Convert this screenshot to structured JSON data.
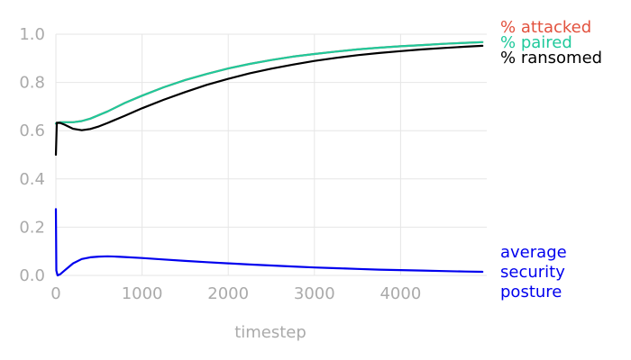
{
  "chart_data": {
    "type": "line",
    "xlabel": "timestep",
    "ylabel": "",
    "xlim": [
      0,
      5000
    ],
    "ylim": [
      0,
      1.0
    ],
    "x_ticks": [
      0,
      1000,
      2000,
      3000,
      4000
    ],
    "x_tick_labels": [
      "0",
      "1000",
      "2000",
      "3000",
      "4000"
    ],
    "y_ticks": [
      0.0,
      0.2,
      0.4,
      0.6,
      0.8,
      1.0
    ],
    "y_tick_labels": [
      "0.0",
      "0.2",
      "0.4",
      "0.6",
      "0.8",
      "1.0"
    ],
    "grid": true,
    "legend": "direct labels at right end of lines",
    "series": [
      {
        "name": "% attacked",
        "color": "#e2513d",
        "x": [
          0,
          50,
          100,
          200,
          300,
          400,
          500,
          600,
          800,
          1000,
          1250,
          1500,
          1750,
          2000,
          2250,
          2500,
          2750,
          3000,
          3250,
          3500,
          3750,
          4000,
          4250,
          4500,
          4750,
          4950
        ],
        "y": [
          0.63,
          0.635,
          0.635,
          0.635,
          0.64,
          0.65,
          0.665,
          0.68,
          0.715,
          0.745,
          0.78,
          0.81,
          0.835,
          0.858,
          0.877,
          0.893,
          0.907,
          0.918,
          0.928,
          0.937,
          0.944,
          0.95,
          0.955,
          0.96,
          0.964,
          0.967
        ]
      },
      {
        "name": "% paired",
        "color": "#1fc99b",
        "x": [
          0,
          50,
          100,
          200,
          300,
          400,
          500,
          600,
          800,
          1000,
          1250,
          1500,
          1750,
          2000,
          2250,
          2500,
          2750,
          3000,
          3250,
          3500,
          3750,
          4000,
          4250,
          4500,
          4750,
          4950
        ],
        "y": [
          0.63,
          0.635,
          0.635,
          0.635,
          0.64,
          0.65,
          0.665,
          0.68,
          0.715,
          0.745,
          0.78,
          0.81,
          0.835,
          0.858,
          0.877,
          0.893,
          0.907,
          0.918,
          0.928,
          0.937,
          0.944,
          0.95,
          0.955,
          0.96,
          0.964,
          0.967
        ]
      },
      {
        "name": "% ransomed",
        "color": "#000000",
        "x": [
          0,
          10,
          50,
          100,
          200,
          300,
          400,
          500,
          600,
          800,
          1000,
          1250,
          1500,
          1750,
          2000,
          2250,
          2500,
          2750,
          3000,
          3250,
          3500,
          3750,
          4000,
          4250,
          4500,
          4750,
          4950
        ],
        "y": [
          0.5,
          0.633,
          0.632,
          0.625,
          0.608,
          0.602,
          0.607,
          0.618,
          0.632,
          0.662,
          0.693,
          0.728,
          0.76,
          0.79,
          0.815,
          0.838,
          0.857,
          0.874,
          0.889,
          0.902,
          0.913,
          0.922,
          0.93,
          0.937,
          0.943,
          0.948,
          0.952
        ]
      },
      {
        "name": "average security posture",
        "label_lines": [
          "average",
          "security",
          "posture"
        ],
        "color": "#0000ee",
        "x": [
          0,
          5,
          20,
          50,
          100,
          150,
          200,
          300,
          400,
          500,
          600,
          700,
          800,
          1000,
          1250,
          1500,
          1750,
          2000,
          2250,
          2500,
          2750,
          3000,
          3250,
          3500,
          3750,
          4000,
          4250,
          4500,
          4750,
          4950
        ],
        "y": [
          0.275,
          0.02,
          0.0,
          0.005,
          0.02,
          0.035,
          0.05,
          0.068,
          0.075,
          0.078,
          0.079,
          0.078,
          0.076,
          0.072,
          0.066,
          0.06,
          0.055,
          0.05,
          0.045,
          0.041,
          0.037,
          0.033,
          0.03,
          0.027,
          0.024,
          0.022,
          0.02,
          0.018,
          0.016,
          0.015
        ]
      }
    ]
  }
}
